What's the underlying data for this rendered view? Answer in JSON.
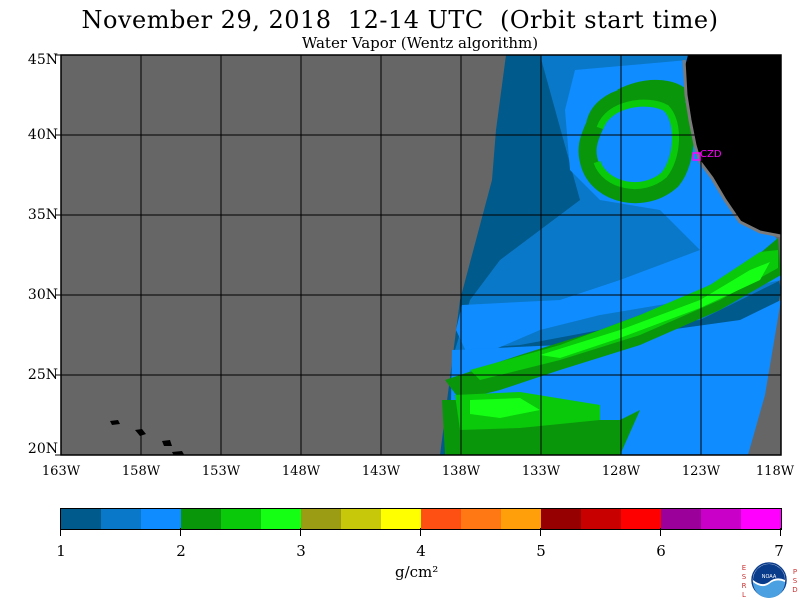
{
  "title": "November 29, 2018  12-14 UTC  (Orbit start time)",
  "subtitle": "Water Vapor (Wentz algorithm)",
  "station_label": "CZD",
  "lat_labels": [
    "45N",
    "40N",
    "35N",
    "30N",
    "25N",
    "20N"
  ],
  "lon_labels": [
    "163W",
    "158W",
    "153W",
    "148W",
    "143W",
    "138W",
    "133W",
    "128W",
    "123W",
    "118W"
  ],
  "colorbar": {
    "colors": [
      "#005a8c",
      "#0a78c8",
      "#0f8cff",
      "#0a960a",
      "#0ac80a",
      "#14ff14",
      "#9b9b14",
      "#c8c80a",
      "#ffff00",
      "#ff5014",
      "#ff7814",
      "#ffa00a",
      "#960000",
      "#c80000",
      "#ff0000",
      "#9b009b",
      "#c800c8",
      "#ff00ff"
    ],
    "ticks": [
      "1",
      "2",
      "3",
      "4",
      "5",
      "6",
      "7"
    ],
    "units": "g/cm²"
  },
  "logo": {
    "left_letters": [
      "E",
      "S",
      "R",
      "L"
    ],
    "right_letters": [
      "P",
      "S",
      "D"
    ],
    "emblem": "NOAA"
  }
}
